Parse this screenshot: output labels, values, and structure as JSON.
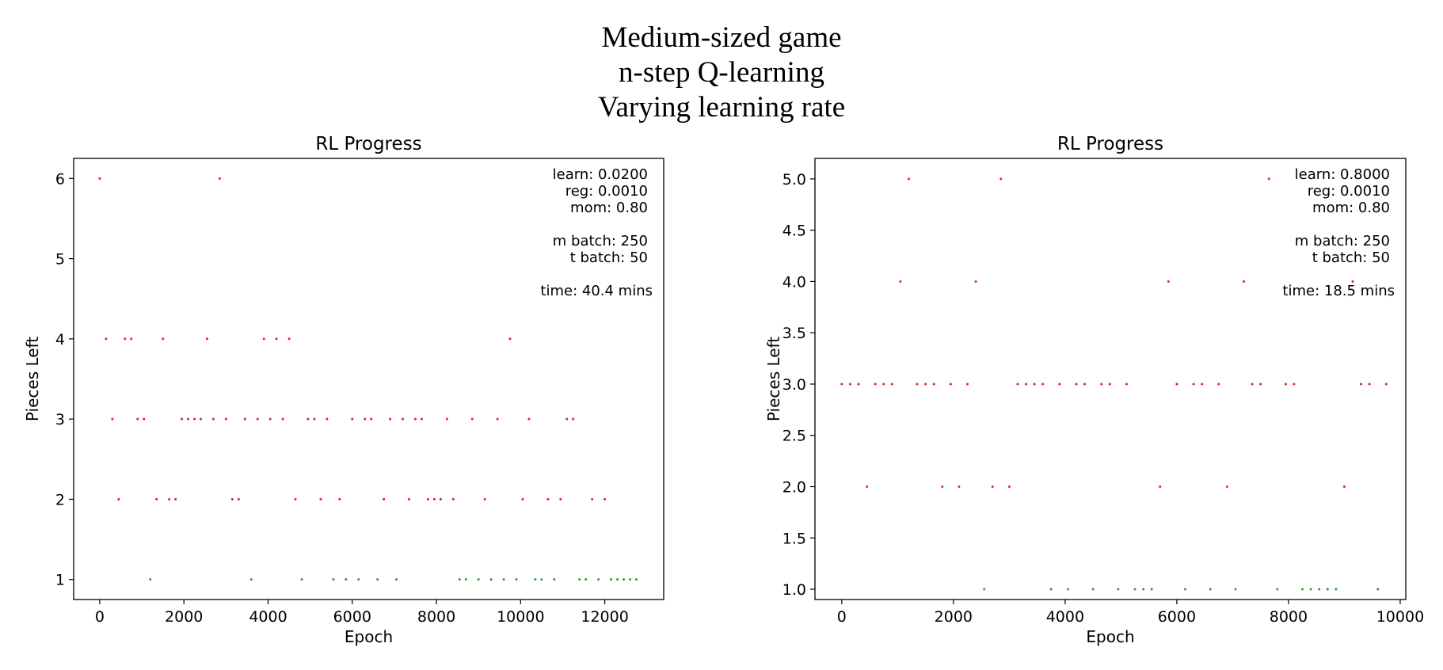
{
  "figure": {
    "suptitle": [
      "Medium-sized game",
      "n-step Q-learning",
      "Varying learning rate"
    ]
  },
  "colors": {
    "failure": "#d62728",
    "success": "#2ca02c",
    "axes": "#000000"
  },
  "chart_data": [
    {
      "type": "scatter",
      "title": "RL Progress",
      "xlabel": "Epoch",
      "ylabel": "Pieces Left",
      "xlim": [
        -620,
        13400
      ],
      "ylim": [
        0.75,
        6.25
      ],
      "xticks": [
        0,
        2000,
        4000,
        6000,
        8000,
        10000,
        12000
      ],
      "yticks": [
        1,
        2,
        3,
        4,
        5,
        6
      ],
      "ytick_format": "int",
      "grid": false,
      "info": [
        "learn: 0.0200",
        "reg: 0.0010",
        "mom: 0.80",
        "",
        "m batch: 250",
        "t batch: 50",
        "",
        "time: 40.4 mins"
      ],
      "series": [
        {
          "color": "#d62728",
          "x": [
            0,
            2850,
            150,
            600,
            750,
            1500,
            2550,
            3900,
            4200,
            4500,
            9750,
            300,
            900,
            1050,
            1950,
            2100,
            2250,
            2400,
            2700,
            3000,
            3450,
            3750,
            4050,
            4350,
            4950,
            5100,
            5400,
            6000,
            6300,
            6450,
            6900,
            7200,
            7500,
            7650,
            8250,
            8850,
            9450,
            10200,
            11100,
            11250,
            450,
            1350,
            1650,
            1800,
            3150,
            3300,
            4650,
            5250,
            5700,
            6750,
            7350,
            7800,
            7950,
            8100,
            8400,
            9150,
            10050,
            10650,
            10950,
            11700,
            12000
          ],
          "y": [
            6,
            6,
            4,
            4,
            4,
            4,
            4,
            4,
            4,
            4,
            4,
            3,
            3,
            3,
            3,
            3,
            3,
            3,
            3,
            3,
            3,
            3,
            3,
            3,
            3,
            3,
            3,
            3,
            3,
            3,
            3,
            3,
            3,
            3,
            3,
            3,
            3,
            3,
            3,
            3,
            2,
            2,
            2,
            2,
            2,
            2,
            2,
            2,
            2,
            2,
            2,
            2,
            2,
            2,
            2,
            2,
            2,
            2,
            2,
            2,
            2
          ]
        },
        {
          "color": "#2ca02c",
          "x": [
            1200,
            3600,
            4800,
            5550,
            5850,
            6150,
            6600,
            7050,
            8550,
            8700,
            9000,
            9300,
            9600,
            9900,
            10350,
            10500,
            10800,
            11400,
            11550,
            11850,
            12150,
            12300,
            12450,
            12600,
            12750
          ],
          "y": [
            1,
            1,
            1,
            1,
            1,
            1,
            1,
            1,
            1,
            1,
            1,
            1,
            1,
            1,
            1,
            1,
            1,
            1,
            1,
            1,
            1,
            1,
            1,
            1,
            1
          ]
        }
      ]
    },
    {
      "type": "scatter",
      "title": "RL Progress",
      "xlabel": "Epoch",
      "ylabel": "Pieces Left",
      "xlim": [
        -480,
        10100
      ],
      "ylim": [
        0.9,
        5.2
      ],
      "xticks": [
        0,
        2000,
        4000,
        6000,
        8000,
        10000
      ],
      "yticks": [
        1.0,
        1.5,
        2.0,
        2.5,
        3.0,
        3.5,
        4.0,
        4.5,
        5.0
      ],
      "ytick_format": "1dp",
      "grid": false,
      "info": [
        "learn: 0.8000",
        "reg: 0.0010",
        "mom: 0.80",
        "",
        "m batch: 250",
        "t batch: 50",
        "",
        "time: 18.5 mins"
      ],
      "series": [
        {
          "color": "#d62728",
          "x": [
            1200,
            2850,
            7650,
            1050,
            2400,
            5850,
            7200,
            9150,
            0,
            150,
            300,
            600,
            750,
            900,
            1350,
            1500,
            1650,
            1950,
            2250,
            3150,
            3300,
            3450,
            3600,
            3900,
            4200,
            4350,
            4650,
            4800,
            5100,
            6000,
            6300,
            6450,
            6750,
            7350,
            7500,
            7950,
            8100,
            9300,
            9450,
            9750,
            450,
            1800,
            2100,
            2700,
            3000,
            5700,
            6900,
            9000
          ],
          "y": [
            5,
            5,
            5,
            4,
            4,
            4,
            4,
            4,
            3,
            3,
            3,
            3,
            3,
            3,
            3,
            3,
            3,
            3,
            3,
            3,
            3,
            3,
            3,
            3,
            3,
            3,
            3,
            3,
            3,
            3,
            3,
            3,
            3,
            3,
            3,
            3,
            3,
            3,
            3,
            3,
            2,
            2,
            2,
            2,
            2,
            2,
            2,
            2
          ]
        },
        {
          "color": "#2ca02c",
          "x": [
            2550,
            3750,
            4050,
            4500,
            4950,
            5250,
            5400,
            5550,
            6150,
            6600,
            7050,
            7800,
            8250,
            8400,
            8550,
            8700,
            8850,
            9600
          ],
          "y": [
            1,
            1,
            1,
            1,
            1,
            1,
            1,
            1,
            1,
            1,
            1,
            1,
            1,
            1,
            1,
            1,
            1,
            1
          ]
        }
      ]
    }
  ]
}
